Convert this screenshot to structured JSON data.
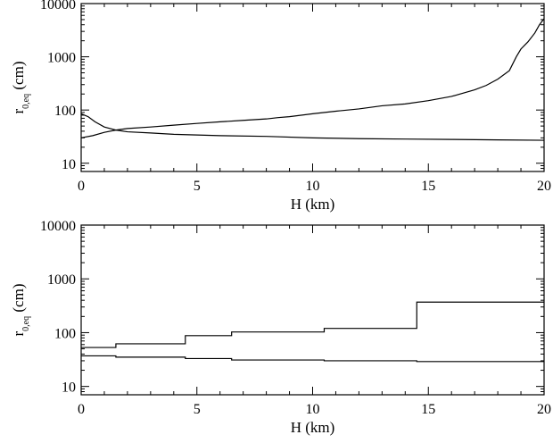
{
  "chart_data": [
    {
      "type": "line",
      "panel": "top",
      "step": false,
      "xlabel": "H (km)",
      "ylabel_main": "r",
      "ylabel_sub": "0,eq",
      "ylabel_tail": " (cm)",
      "xlim": [
        0,
        20
      ],
      "ylim": [
        7,
        10000
      ],
      "yscale": "log",
      "xticks": [
        0,
        5,
        10,
        15,
        20
      ],
      "xtick_labels": [
        "0",
        "5",
        "10",
        "15",
        "20"
      ],
      "yticks": [
        10,
        100,
        1000,
        10000
      ],
      "ytick_labels": [
        "10",
        "100",
        "1000",
        "10000"
      ],
      "series": [
        {
          "x": [
            0,
            0.5,
            1,
            1.5,
            2,
            3,
            4,
            5,
            6,
            7,
            8,
            8.5,
            9,
            10,
            11,
            12,
            13,
            14,
            15,
            16,
            17,
            17.5,
            18,
            18.5,
            18.8,
            19,
            19.3,
            19.6,
            19.8,
            20
          ],
          "y": [
            30,
            33,
            38,
            42,
            45,
            48,
            52,
            56,
            60,
            64,
            68,
            72,
            75,
            85,
            95,
            105,
            120,
            130,
            150,
            180,
            240,
            290,
            380,
            550,
            1000,
            1400,
            1900,
            2800,
            4000,
            5200
          ]
        },
        {
          "x": [
            0,
            0.3,
            0.6,
            1,
            1.5,
            2,
            3,
            4,
            5,
            6,
            8,
            10,
            12,
            14,
            16,
            18,
            20
          ],
          "y": [
            85,
            75,
            60,
            48,
            42,
            39,
            37,
            35,
            34,
            33,
            32,
            30,
            29,
            28.5,
            28,
            27.5,
            27
          ]
        }
      ]
    },
    {
      "type": "line",
      "panel": "bottom",
      "step": true,
      "xlabel": "H (km)",
      "ylabel_main": "r",
      "ylabel_sub": "0,eq",
      "ylabel_tail": " (cm)",
      "xlim": [
        0,
        20
      ],
      "ylim": [
        7,
        10000
      ],
      "yscale": "log",
      "xticks": [
        0,
        5,
        10,
        15,
        20
      ],
      "xtick_labels": [
        "0",
        "5",
        "10",
        "15",
        "20"
      ],
      "yticks": [
        10,
        100,
        1000,
        10000
      ],
      "ytick_labels": [
        "10",
        "100",
        "1000",
        "10000"
      ],
      "series": [
        {
          "x": [
            0,
            1.5,
            4.5,
            6.5,
            10.5,
            14.5,
            20
          ],
          "y": [
            53,
            62,
            88,
            103,
            120,
            370,
            370
          ]
        },
        {
          "x": [
            0,
            1.5,
            4.5,
            6.5,
            10.5,
            14.5,
            20
          ],
          "y": [
            37,
            35,
            33,
            31,
            30,
            29,
            28
          ]
        }
      ]
    }
  ]
}
